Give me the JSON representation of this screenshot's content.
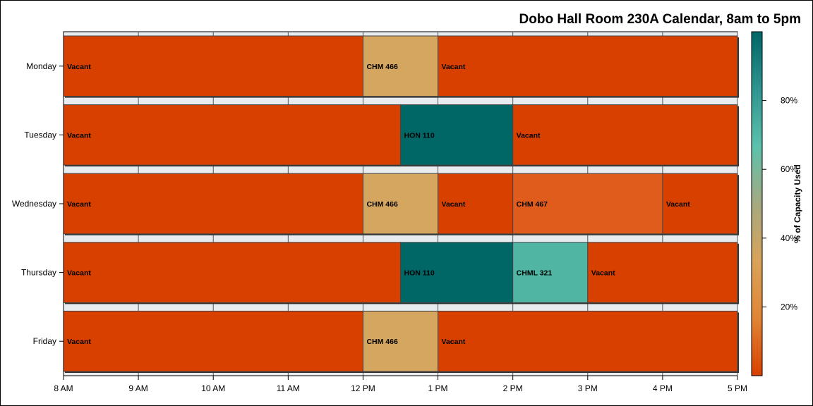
{
  "chart_data": {
    "type": "bar",
    "subtype": "timeline",
    "title": "Dobo Hall Room 230A Calendar, 8am to 5pm",
    "xlabel": "",
    "ylabel": "",
    "x_range_hours": [
      8,
      17
    ],
    "x_ticks": [
      "8 AM",
      "9 AM",
      "10 AM",
      "11 AM",
      "12 PM",
      "1 PM",
      "2 PM",
      "3 PM",
      "4 PM",
      "5 PM"
    ],
    "days": [
      "Monday",
      "Tuesday",
      "Wednesday",
      "Thursday",
      "Friday"
    ],
    "colorbar": {
      "label": "% of Capacity Used",
      "ticks": [
        "20%",
        "40%",
        "60%",
        "80%"
      ],
      "tick_values": [
        20,
        40,
        60,
        80
      ],
      "range": [
        0,
        100
      ],
      "stops": [
        "#D84000",
        "#E08535",
        "#D9A35A",
        "#A5A980",
        "#5CC2AC",
        "#2E9490",
        "#006666"
      ]
    },
    "series": [
      {
        "day": "Monday",
        "blocks": [
          {
            "label": "Vacant",
            "start": 8,
            "end": 12,
            "capacity": 0
          },
          {
            "label": "CHM 466",
            "start": 12,
            "end": 13,
            "capacity": 42
          },
          {
            "label": "Vacant",
            "start": 13,
            "end": 17,
            "capacity": 0
          }
        ]
      },
      {
        "day": "Tuesday",
        "blocks": [
          {
            "label": "Vacant",
            "start": 8,
            "end": 12.5,
            "capacity": 0
          },
          {
            "label": "HON 110",
            "start": 12.5,
            "end": 14,
            "capacity": 100
          },
          {
            "label": "Vacant",
            "start": 14,
            "end": 17,
            "capacity": 0
          }
        ]
      },
      {
        "day": "Wednesday",
        "blocks": [
          {
            "label": "Vacant",
            "start": 8,
            "end": 12,
            "capacity": 0
          },
          {
            "label": "CHM 466",
            "start": 12,
            "end": 13,
            "capacity": 42
          },
          {
            "label": "Vacant",
            "start": 13,
            "end": 14,
            "capacity": 0
          },
          {
            "label": "CHM 467",
            "start": 14,
            "end": 16,
            "capacity": 14
          },
          {
            "label": "Vacant",
            "start": 16,
            "end": 17,
            "capacity": 0
          }
        ]
      },
      {
        "day": "Thursday",
        "blocks": [
          {
            "label": "Vacant",
            "start": 8,
            "end": 12.5,
            "capacity": 0
          },
          {
            "label": "HON 110",
            "start": 12.5,
            "end": 14,
            "capacity": 100
          },
          {
            "label": "CHML 321",
            "start": 14,
            "end": 15,
            "capacity": 68
          },
          {
            "label": "Vacant",
            "start": 15,
            "end": 17,
            "capacity": 0
          }
        ]
      },
      {
        "day": "Friday",
        "blocks": [
          {
            "label": "Vacant",
            "start": 8,
            "end": 12,
            "capacity": 0
          },
          {
            "label": "CHM 466",
            "start": 12,
            "end": 13,
            "capacity": 42
          },
          {
            "label": "Vacant",
            "start": 13,
            "end": 17,
            "capacity": 0
          }
        ]
      }
    ],
    "block_colors": {
      "Vacant": "#D84000",
      "CHM 466": "#D4A660",
      "HON 110": "#006666",
      "CHM 467": "#E05C1C",
      "CHML 321": "#50B5A3"
    },
    "grid": true,
    "legend": "right"
  }
}
